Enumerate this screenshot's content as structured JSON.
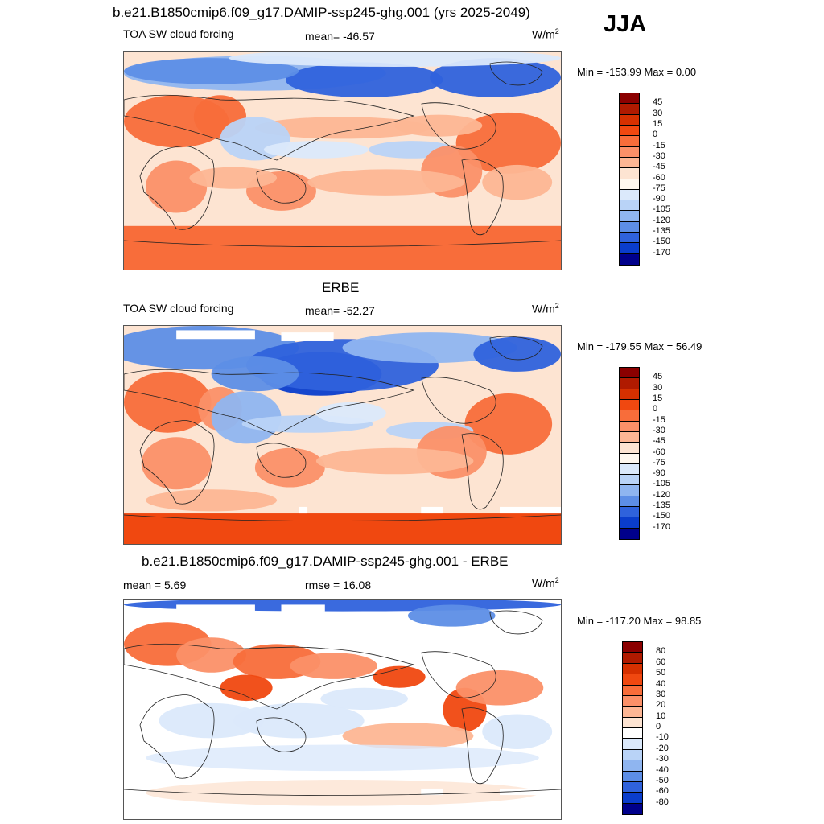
{
  "season": "JJA",
  "panels": [
    {
      "id": "model",
      "title": "b.e21.B1850cmip6.f09_g17.DAMIP-ssp245-ghg.001 (yrs 2025-2049)",
      "left_label": "TOA SW cloud forcing",
      "center_label": "mean= -46.57",
      "units_base": "W/m",
      "units_exp": "2",
      "minmax": "Min = -153.99 Max =   0.00",
      "colorbar_labels": [
        "45",
        "30",
        "15",
        "0",
        "-15",
        "-30",
        "-45",
        "-60",
        "-75",
        "-90",
        "-105",
        "-120",
        "-135",
        "-150",
        "-170"
      ]
    },
    {
      "id": "obs",
      "title": "ERBE",
      "left_label": "TOA SW cloud forcing",
      "center_label": "mean= -52.27",
      "units_base": "W/m",
      "units_exp": "2",
      "minmax": "Min = -179.55 Max =  56.49",
      "colorbar_labels": [
        "45",
        "30",
        "15",
        "0",
        "-15",
        "-30",
        "-45",
        "-60",
        "-75",
        "-90",
        "-105",
        "-120",
        "-135",
        "-150",
        "-170"
      ]
    },
    {
      "id": "diff",
      "title": "b.e21.B1850cmip6.f09_g17.DAMIP-ssp245-ghg.001 - ERBE",
      "left_label": "mean =   5.69",
      "center_label": "rmse =  16.08",
      "units_base": "W/m",
      "units_exp": "2",
      "minmax": "Min = -117.20 Max =  98.85",
      "colorbar_labels": [
        "80",
        "60",
        "50",
        "40",
        "30",
        "20",
        "10",
        "0",
        "-10",
        "-20",
        "-30",
        "-40",
        "-50",
        "-60",
        "-80"
      ]
    }
  ],
  "chart_data": [
    {
      "type": "heatmap",
      "title": "b.e21.B1850cmip6.f09_g17.DAMIP-ssp245-ghg.001 (yrs 2025-2049)",
      "variable": "TOA SW cloud forcing",
      "units": "W/m2",
      "mean": -46.57,
      "min": -153.99,
      "max": 0.0,
      "levels": [
        45,
        30,
        15,
        0,
        -15,
        -30,
        -45,
        -60,
        -75,
        -90,
        -105,
        -120,
        -135,
        -150,
        -170
      ]
    },
    {
      "type": "heatmap",
      "title": "ERBE",
      "variable": "TOA SW cloud forcing",
      "units": "W/m2",
      "mean": -52.27,
      "min": -179.55,
      "max": 56.49,
      "levels": [
        45,
        30,
        15,
        0,
        -15,
        -30,
        -45,
        -60,
        -75,
        -90,
        -105,
        -120,
        -135,
        -150,
        -170
      ]
    },
    {
      "type": "heatmap",
      "title": "b.e21.B1850cmip6.f09_g17.DAMIP-ssp245-ghg.001 - ERBE",
      "units": "W/m2",
      "mean": 5.69,
      "rmse": 16.08,
      "min": -117.2,
      "max": 98.85,
      "levels": [
        80,
        60,
        50,
        40,
        30,
        20,
        10,
        0,
        -10,
        -20,
        -30,
        -40,
        -50,
        -60,
        -80
      ]
    }
  ],
  "colors": {
    "cf_scale": [
      "#8b0000",
      "#b01a00",
      "#d63000",
      "#f04810",
      "#f86d3a",
      "#fb9068",
      "#fdb694",
      "#fde4d2",
      "#fff8ef",
      "#dbe9fb",
      "#b9d3f7",
      "#8fb5f0",
      "#5d8ee6",
      "#2f62dc",
      "#0a3dcc",
      "#00008b"
    ],
    "diff_scale": [
      "#8b0000",
      "#b01a00",
      "#d63000",
      "#f04810",
      "#f86d3a",
      "#fb9068",
      "#fdb694",
      "#fde4d2",
      "#ffffff",
      "#dbe9fb",
      "#b9d3f7",
      "#8fb5f0",
      "#5d8ee6",
      "#2f62dc",
      "#0a3dcc",
      "#00008b"
    ]
  }
}
